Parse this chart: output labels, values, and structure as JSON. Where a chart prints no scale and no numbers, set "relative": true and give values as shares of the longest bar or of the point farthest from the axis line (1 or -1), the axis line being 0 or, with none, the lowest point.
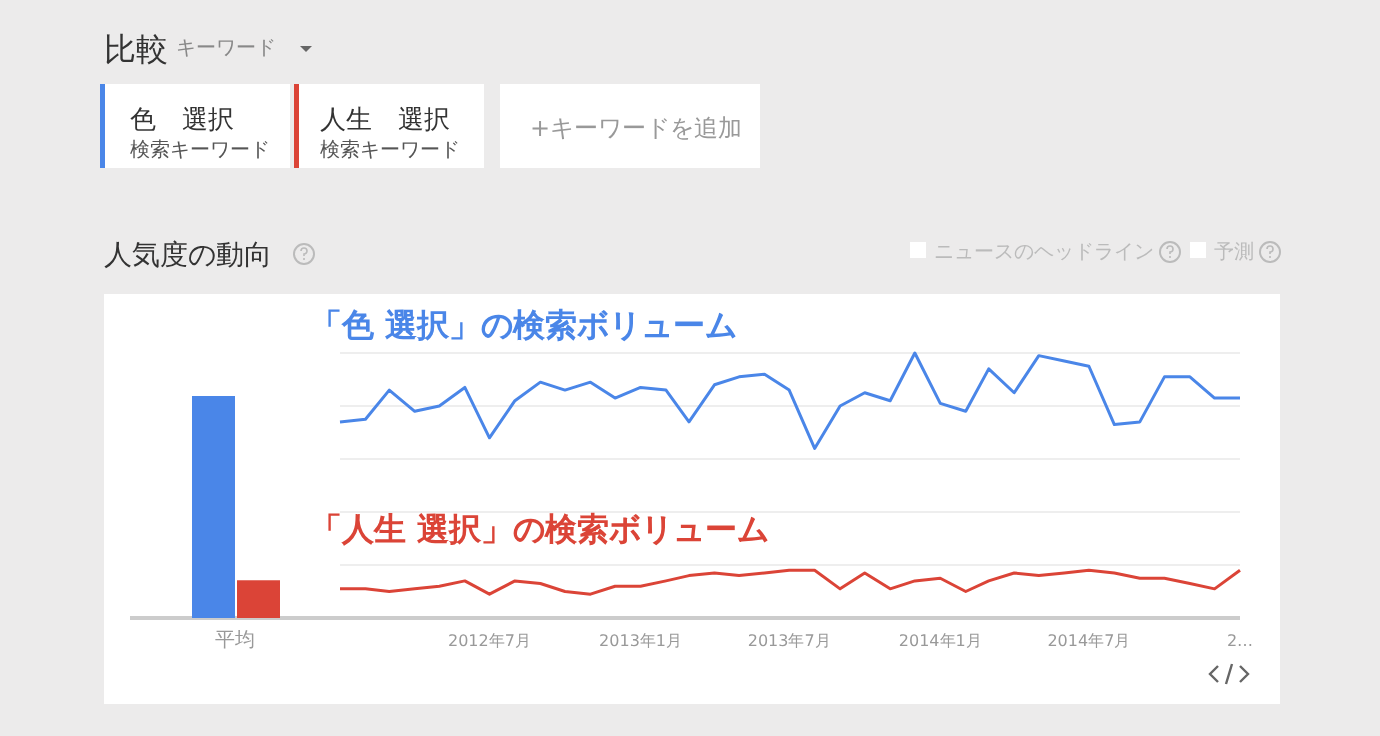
{
  "chart_data": [
    {
      "type": "other",
      "title": "比較",
      "subtitle": "人気度の動向",
      "annotations": [
        "キーワード",
        "色　選択",
        "検索キーワード",
        "人生　選択",
        "検索キーワード",
        "+キーワードを追加",
        "ニュースのヘッドライン",
        "予測"
      ]
    },
    {
      "type": "bar",
      "relative": true,
      "categories": [
        "平均"
      ],
      "series": [
        {
          "color": "#4a86e8",
          "values": [
            1
          ]
        },
        {
          "color": "#db4437",
          "values": [
            0.17
          ]
        }
      ]
    },
    {
      "type": "line",
      "relative": true,
      "grid": "y",
      "marker": "none",
      "line_style": "solid",
      "x": [
        "2012-01",
        "2012-02",
        "2012-03",
        "2012-04",
        "2012-05",
        "2012-06",
        "2012-07",
        "2012-08",
        "2012-09",
        "2012-10",
        "2012-11",
        "2012-12",
        "2013-01",
        "2013-02",
        "2013-03",
        "2013-04",
        "2013-05",
        "2013-06",
        "2013-07",
        "2013-08",
        "2013-09",
        "2013-10",
        "2013-11",
        "2013-12",
        "2014-01",
        "2014-02",
        "2014-03",
        "2014-04",
        "2014-05",
        "2014-06",
        "2014-07",
        "2014-08",
        "2014-09",
        "2014-10",
        "2014-11",
        "2014-12",
        "2015-01"
      ],
      "xlim": [
        "2012-01",
        "2015-01"
      ],
      "xticks": [
        {
          "value": "2012-07",
          "label": "2012年7月"
        },
        {
          "value": "2013-01",
          "label": "2013年1月"
        },
        {
          "value": "2013-07",
          "label": "2013年7月"
        },
        {
          "value": "2014-01",
          "label": "2014年1月"
        },
        {
          "value": "2014-07",
          "label": "2014年7月"
        },
        {
          "value": "2015-01",
          "label": "2…"
        }
      ],
      "series": [
        {
          "name": "「色 選択」の検索ボリューム",
          "color": "#4a86e8",
          "values": [
            0.74,
            0.75,
            0.86,
            0.78,
            0.8,
            0.87,
            0.68,
            0.82,
            0.89,
            0.86,
            0.89,
            0.83,
            0.87,
            0.86,
            0.74,
            0.88,
            0.91,
            0.92,
            0.86,
            0.64,
            0.8,
            0.85,
            0.82,
            1,
            0.81,
            0.78,
            0.94,
            0.85,
            0.99,
            0.97,
            0.95,
            0.73,
            0.74,
            0.91,
            0.91,
            0.83,
            0.83
          ]
        },
        {
          "name": "「人生 選択」の検索ボリューム",
          "color": "#db4437",
          "values": [
            0.11,
            0.11,
            0.1,
            0.11,
            0.12,
            0.14,
            0.09,
            0.14,
            0.13,
            0.1,
            0.09,
            0.12,
            0.12,
            0.14,
            0.16,
            0.17,
            0.16,
            0.17,
            0.18,
            0.18,
            0.11,
            0.17,
            0.11,
            0.14,
            0.15,
            0.1,
            0.14,
            0.17,
            0.16,
            0.17,
            0.18,
            0.17,
            0.15,
            0.15,
            0.13,
            0.11,
            0.18
          ]
        }
      ]
    }
  ]
}
